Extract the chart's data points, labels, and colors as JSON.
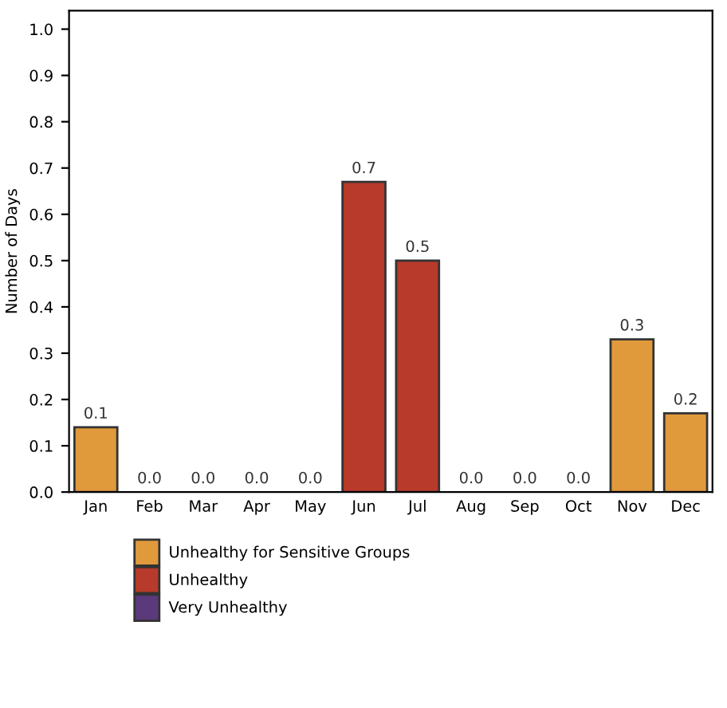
{
  "chart_data": {
    "type": "bar",
    "ylabel": "Number of Days",
    "categories": [
      "Jan",
      "Feb",
      "Mar",
      "Apr",
      "May",
      "Jun",
      "Jul",
      "Aug",
      "Sep",
      "Oct",
      "Nov",
      "Dec"
    ],
    "series": [
      {
        "name": "Unhealthy for Sensitive Groups",
        "color": "#e09a3c",
        "values": [
          0.14,
          0,
          0,
          0,
          0,
          null,
          null,
          0,
          0,
          0,
          0.33,
          0.17
        ],
        "value_labels": [
          "0.1",
          "0.0",
          "0.0",
          "0.0",
          "0.0",
          null,
          null,
          "0.0",
          "0.0",
          "0.0",
          "0.3",
          "0.2"
        ]
      },
      {
        "name": "Unhealthy",
        "color": "#b83a2a",
        "values": [
          null,
          null,
          null,
          null,
          null,
          0.67,
          0.5,
          null,
          null,
          null,
          null,
          null
        ],
        "value_labels": [
          null,
          null,
          null,
          null,
          null,
          "0.7",
          "0.5",
          null,
          null,
          null,
          null,
          null
        ]
      },
      {
        "name": "Very Unhealthy",
        "color": "#5b3a7c",
        "values": [
          null,
          null,
          null,
          null,
          null,
          null,
          null,
          null,
          null,
          null,
          null,
          null
        ]
      }
    ],
    "ylim": [
      0,
      1.04
    ],
    "yticks": [
      {
        "value": 0,
        "label": "0.0"
      },
      0.1,
      0.2,
      0.3,
      0.4,
      0.5,
      0.6,
      0.7,
      0.8,
      0.9,
      {
        "value": 1,
        "label": "1.0"
      }
    ],
    "grid": false,
    "legend": "bottom"
  }
}
